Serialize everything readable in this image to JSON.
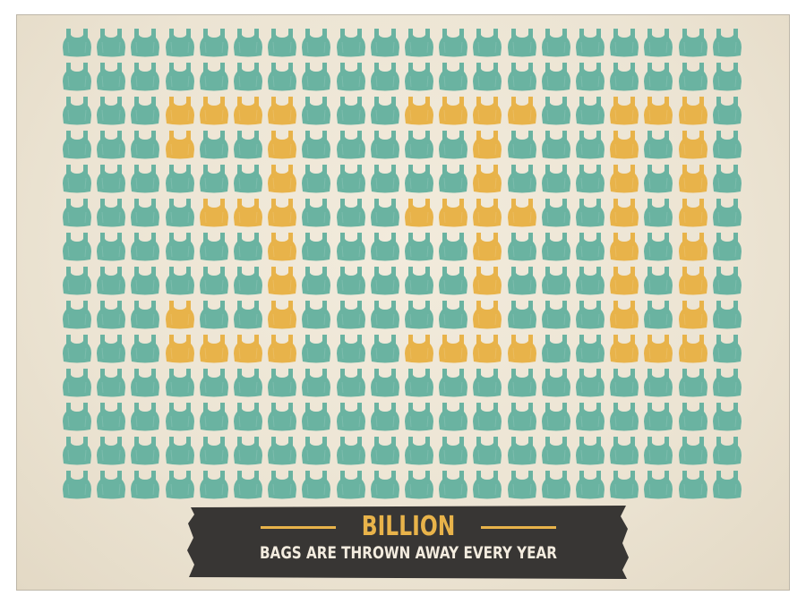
{
  "banner": {
    "title": "BILLION",
    "subtitle": "BAGS ARE THROWN AWAY EVERY YEAR"
  },
  "colors": {
    "background": "#ede5d4",
    "bag_teal": "#6ab3a1",
    "bag_gold": "#e8b34a",
    "banner_dark": "#383634",
    "banner_text": "#f3ecdf"
  },
  "icons": {
    "bag": "plastic-bag-icon"
  },
  "grid": {
    "columns": 20,
    "rows": 14,
    "pattern": [
      "00000000000000000000",
      "00000000000000000000",
      "00011110001111001110",
      "00010010000010001010",
      "00000010000010001010",
      "00001110001111001010",
      "00000010000010001010",
      "00000010000010001010",
      "00010010000010001010",
      "00011110001111001110",
      "00000000000000000000",
      "00000000000000000000",
      "00000000000000000000",
      "00000000000000000000"
    ]
  }
}
